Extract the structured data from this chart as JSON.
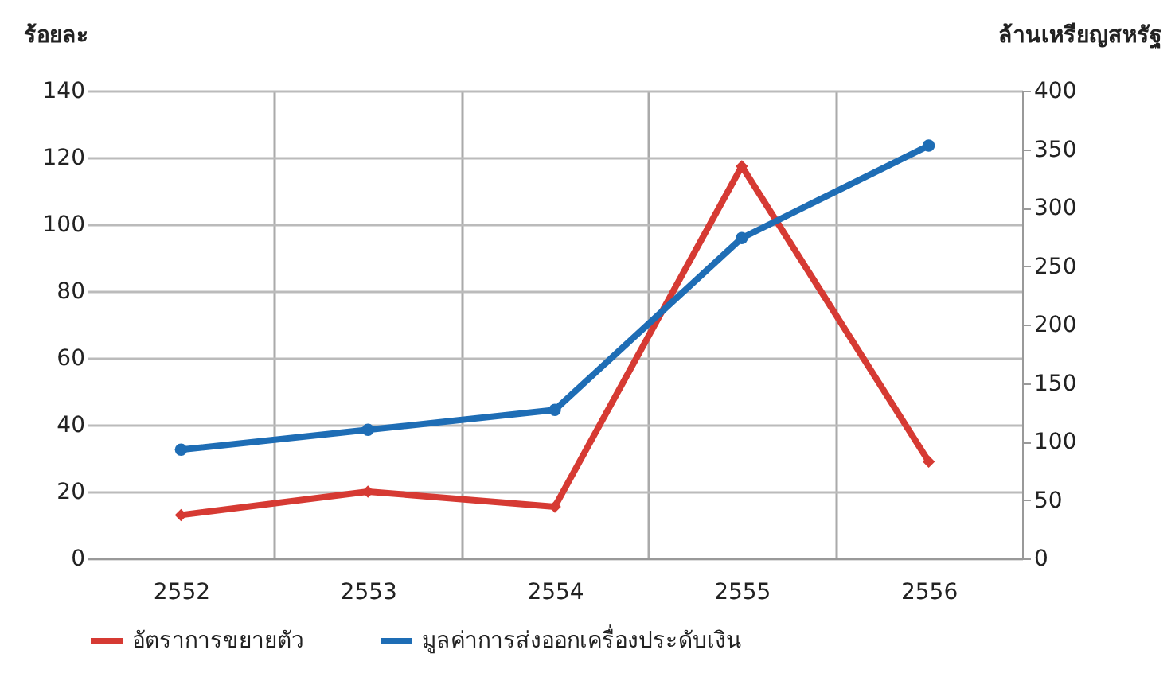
{
  "chart_data": {
    "type": "line",
    "ylabel": "ร้อยละ",
    "y2label": "ล้านเหรียญสหรัฐ",
    "categories": [
      "2552",
      "2553",
      "2554",
      "2555",
      "2556"
    ],
    "series": [
      {
        "name": "อัตราการขยายตัว",
        "color": "#d63a33",
        "marker": "diamond",
        "values": [
          13,
          20,
          15.5,
          117.4,
          29
        ]
      },
      {
        "name": "มูลค่าการส่งออกเครื่องประดับเงิน",
        "color": "#1e6db5",
        "marker": "circle",
        "axis": "y2",
        "values": [
          93,
          110,
          127,
          274,
          353
        ]
      }
    ],
    "ylim": [
      0,
      140
    ],
    "yticks": [
      0,
      20,
      40,
      60,
      80,
      100,
      120,
      140
    ],
    "y2lim": [
      0,
      400
    ],
    "y2ticks": [
      0,
      50,
      100,
      150,
      200,
      250,
      300,
      350,
      400
    ],
    "grid": true,
    "legend": "bottom",
    "line_style": "solid"
  }
}
